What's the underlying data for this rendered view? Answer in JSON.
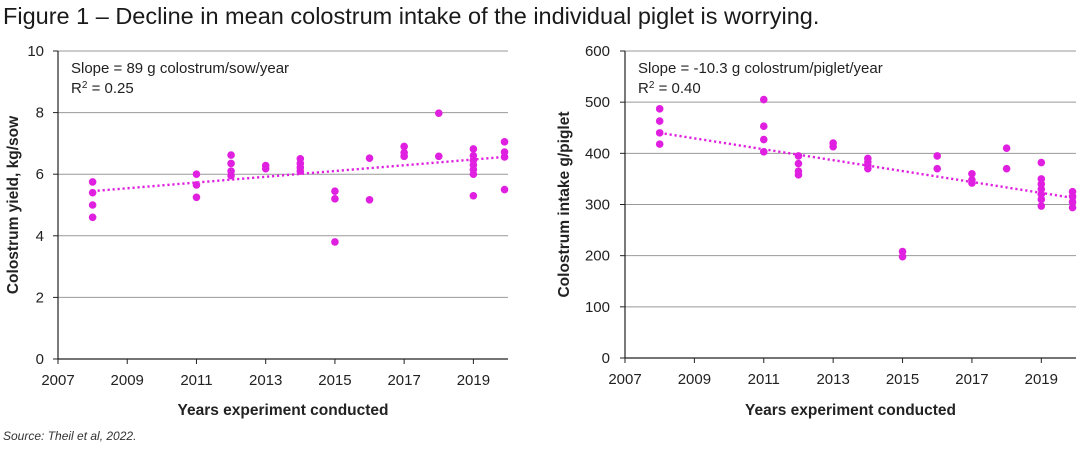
{
  "figure": {
    "title": "Figure 1 – Decline in mean colostrum intake of the individual piglet is worrying.",
    "source": "Source: Theil et al, 2022."
  },
  "colors": {
    "points": "#e020e0",
    "trend": "#e020e0",
    "grid": "#999999",
    "axis": "#222222"
  },
  "chart_data": [
    {
      "type": "scatter",
      "title": "",
      "xlabel": "Years experiment conducted",
      "ylabel": "Colostrum yield, kg/sow",
      "xlim": [
        2007,
        2020
      ],
      "ylim": [
        0,
        10
      ],
      "xticks": [
        2007,
        2009,
        2011,
        2013,
        2015,
        2017,
        2019
      ],
      "yticks": [
        0,
        2,
        4,
        6,
        8,
        10
      ],
      "grid": "horizontal",
      "annotation_lines": [
        "Slope = 89 g colostrum/sow/year"
      ],
      "r2_label": "R",
      "r2_sup": "2",
      "r2_value": " = 0.25",
      "trendline": {
        "style": "dotted",
        "x": [
          2008,
          2020
        ],
        "y": [
          5.45,
          6.57
        ]
      },
      "points": [
        [
          2008,
          5.75
        ],
        [
          2008,
          5.4
        ],
        [
          2008,
          5.0
        ],
        [
          2008,
          4.6
        ],
        [
          2011,
          6.0
        ],
        [
          2011,
          5.65
        ],
        [
          2011,
          5.25
        ],
        [
          2012,
          6.62
        ],
        [
          2012,
          6.35
        ],
        [
          2012,
          6.1
        ],
        [
          2012,
          5.95
        ],
        [
          2013,
          6.28
        ],
        [
          2013,
          6.18
        ],
        [
          2014,
          6.5
        ],
        [
          2014,
          6.35
        ],
        [
          2014,
          6.22
        ],
        [
          2014,
          6.1
        ],
        [
          2015,
          5.45
        ],
        [
          2015,
          5.2
        ],
        [
          2015,
          3.8
        ],
        [
          2016,
          6.52
        ],
        [
          2016,
          5.17
        ],
        [
          2017,
          6.9
        ],
        [
          2017,
          6.7
        ],
        [
          2017,
          6.58
        ],
        [
          2018,
          7.98
        ],
        [
          2018,
          6.58
        ],
        [
          2019,
          6.82
        ],
        [
          2019,
          6.6
        ],
        [
          2019,
          6.45
        ],
        [
          2019,
          6.3
        ],
        [
          2019,
          6.15
        ],
        [
          2019,
          6.0
        ],
        [
          2019,
          5.3
        ],
        [
          2019.9,
          7.05
        ],
        [
          2019.9,
          6.72
        ],
        [
          2019.9,
          6.56
        ],
        [
          2019.9,
          5.5
        ]
      ]
    },
    {
      "type": "scatter",
      "title": "",
      "xlabel": "Years experiment conducted",
      "ylabel": "Colostrum intake g/piglet",
      "xlim": [
        2007,
        2020
      ],
      "ylim": [
        0,
        600
      ],
      "xticks": [
        2007,
        2009,
        2011,
        2013,
        2015,
        2017,
        2019
      ],
      "yticks": [
        0,
        100,
        200,
        300,
        400,
        500,
        600
      ],
      "grid": "horizontal",
      "annotation_lines": [
        "Slope = -10.3 g colostrum/piglet/year"
      ],
      "r2_label": "R",
      "r2_sup": "2",
      "r2_value": " = 0.40",
      "trendline": {
        "style": "dotted",
        "x": [
          2008,
          2020
        ],
        "y": [
          440,
          312
        ]
      },
      "points": [
        [
          2008,
          487
        ],
        [
          2008,
          463
        ],
        [
          2008,
          440
        ],
        [
          2008,
          418
        ],
        [
          2011,
          505
        ],
        [
          2011,
          453
        ],
        [
          2011,
          427
        ],
        [
          2011,
          403
        ],
        [
          2012,
          395
        ],
        [
          2012,
          380
        ],
        [
          2012,
          365
        ],
        [
          2012,
          358
        ],
        [
          2013,
          420
        ],
        [
          2013,
          413
        ],
        [
          2014,
          390
        ],
        [
          2014,
          383
        ],
        [
          2014,
          376
        ],
        [
          2014,
          370
        ],
        [
          2015,
          208
        ],
        [
          2015,
          198
        ],
        [
          2016,
          395
        ],
        [
          2016,
          370
        ],
        [
          2017,
          360
        ],
        [
          2017,
          348
        ],
        [
          2017,
          342
        ],
        [
          2018,
          410
        ],
        [
          2018,
          370
        ],
        [
          2019,
          382
        ],
        [
          2019,
          350
        ],
        [
          2019,
          340
        ],
        [
          2019,
          330
        ],
        [
          2019,
          320
        ],
        [
          2019,
          310
        ],
        [
          2019,
          297
        ],
        [
          2019.9,
          325
        ],
        [
          2019.9,
          316
        ],
        [
          2019.9,
          305
        ],
        [
          2019.9,
          294
        ]
      ]
    }
  ]
}
